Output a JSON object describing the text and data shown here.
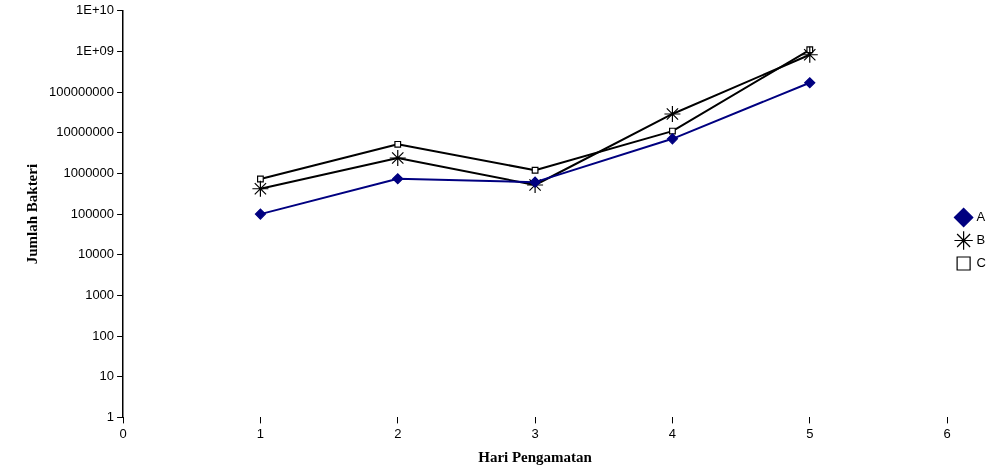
{
  "chart_data": {
    "type": "line",
    "xlabel": "Hari Pengamatan",
    "ylabel": "Jumlah Bakteri",
    "x": [
      1,
      2,
      3,
      4,
      5
    ],
    "xlim": [
      0,
      6
    ],
    "xticks": [
      0,
      1,
      2,
      3,
      4,
      5,
      6
    ],
    "ylim": [
      1,
      10000000000
    ],
    "yticks": [
      1,
      10,
      100,
      1000,
      10000,
      100000,
      1000000,
      10000000,
      100000000,
      {
        "value": 1000000000,
        "label": "1E+09"
      },
      {
        "value": 10000000000,
        "label": "1E+10"
      }
    ],
    "log": "y",
    "grid": false,
    "legend": "right",
    "line_style": "solid",
    "series": [
      {
        "name": "A",
        "color": "#000080",
        "marker": "diamond",
        "values": [
          100000,
          740000,
          610000,
          7100000,
          170000000
        ]
      },
      {
        "name": "B",
        "color": "#000000",
        "marker": "cross",
        "values": [
          420000,
          2400000,
          520000,
          29000000,
          830000000
        ]
      },
      {
        "name": "C",
        "color": "#000000",
        "marker": "square",
        "values": [
          730000,
          5200000,
          1200000,
          11000000,
          1100000000
        ]
      }
    ]
  }
}
